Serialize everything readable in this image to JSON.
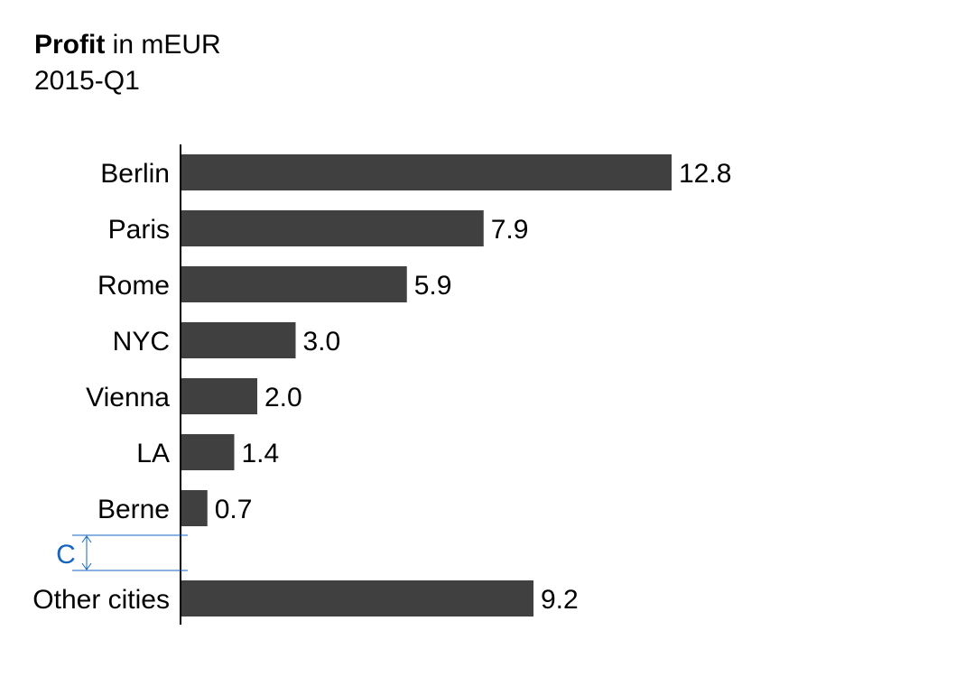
{
  "header": {
    "title_bold": "Profit",
    "title_rest": " in mEUR",
    "subtitle": "2015-Q1"
  },
  "chart_data": {
    "type": "bar",
    "orientation": "horizontal",
    "title": "Profit in mEUR",
    "subtitle": "2015-Q1",
    "categories": [
      "Berlin",
      "Paris",
      "Rome",
      "NYC",
      "Vienna",
      "LA",
      "Berne",
      "Other cities"
    ],
    "values": [
      12.8,
      7.9,
      5.9,
      3.0,
      2.0,
      1.4,
      0.7,
      9.2
    ],
    "value_labels": [
      "12.8",
      "7.9",
      "5.9",
      "3.0",
      "2.0",
      "1.4",
      "0.7",
      "9.2"
    ],
    "xlim": [
      0,
      12.8
    ],
    "grid": false,
    "bar_color": "#404040",
    "axis_break_label": "C",
    "axis_break_color": "#1565C0"
  }
}
